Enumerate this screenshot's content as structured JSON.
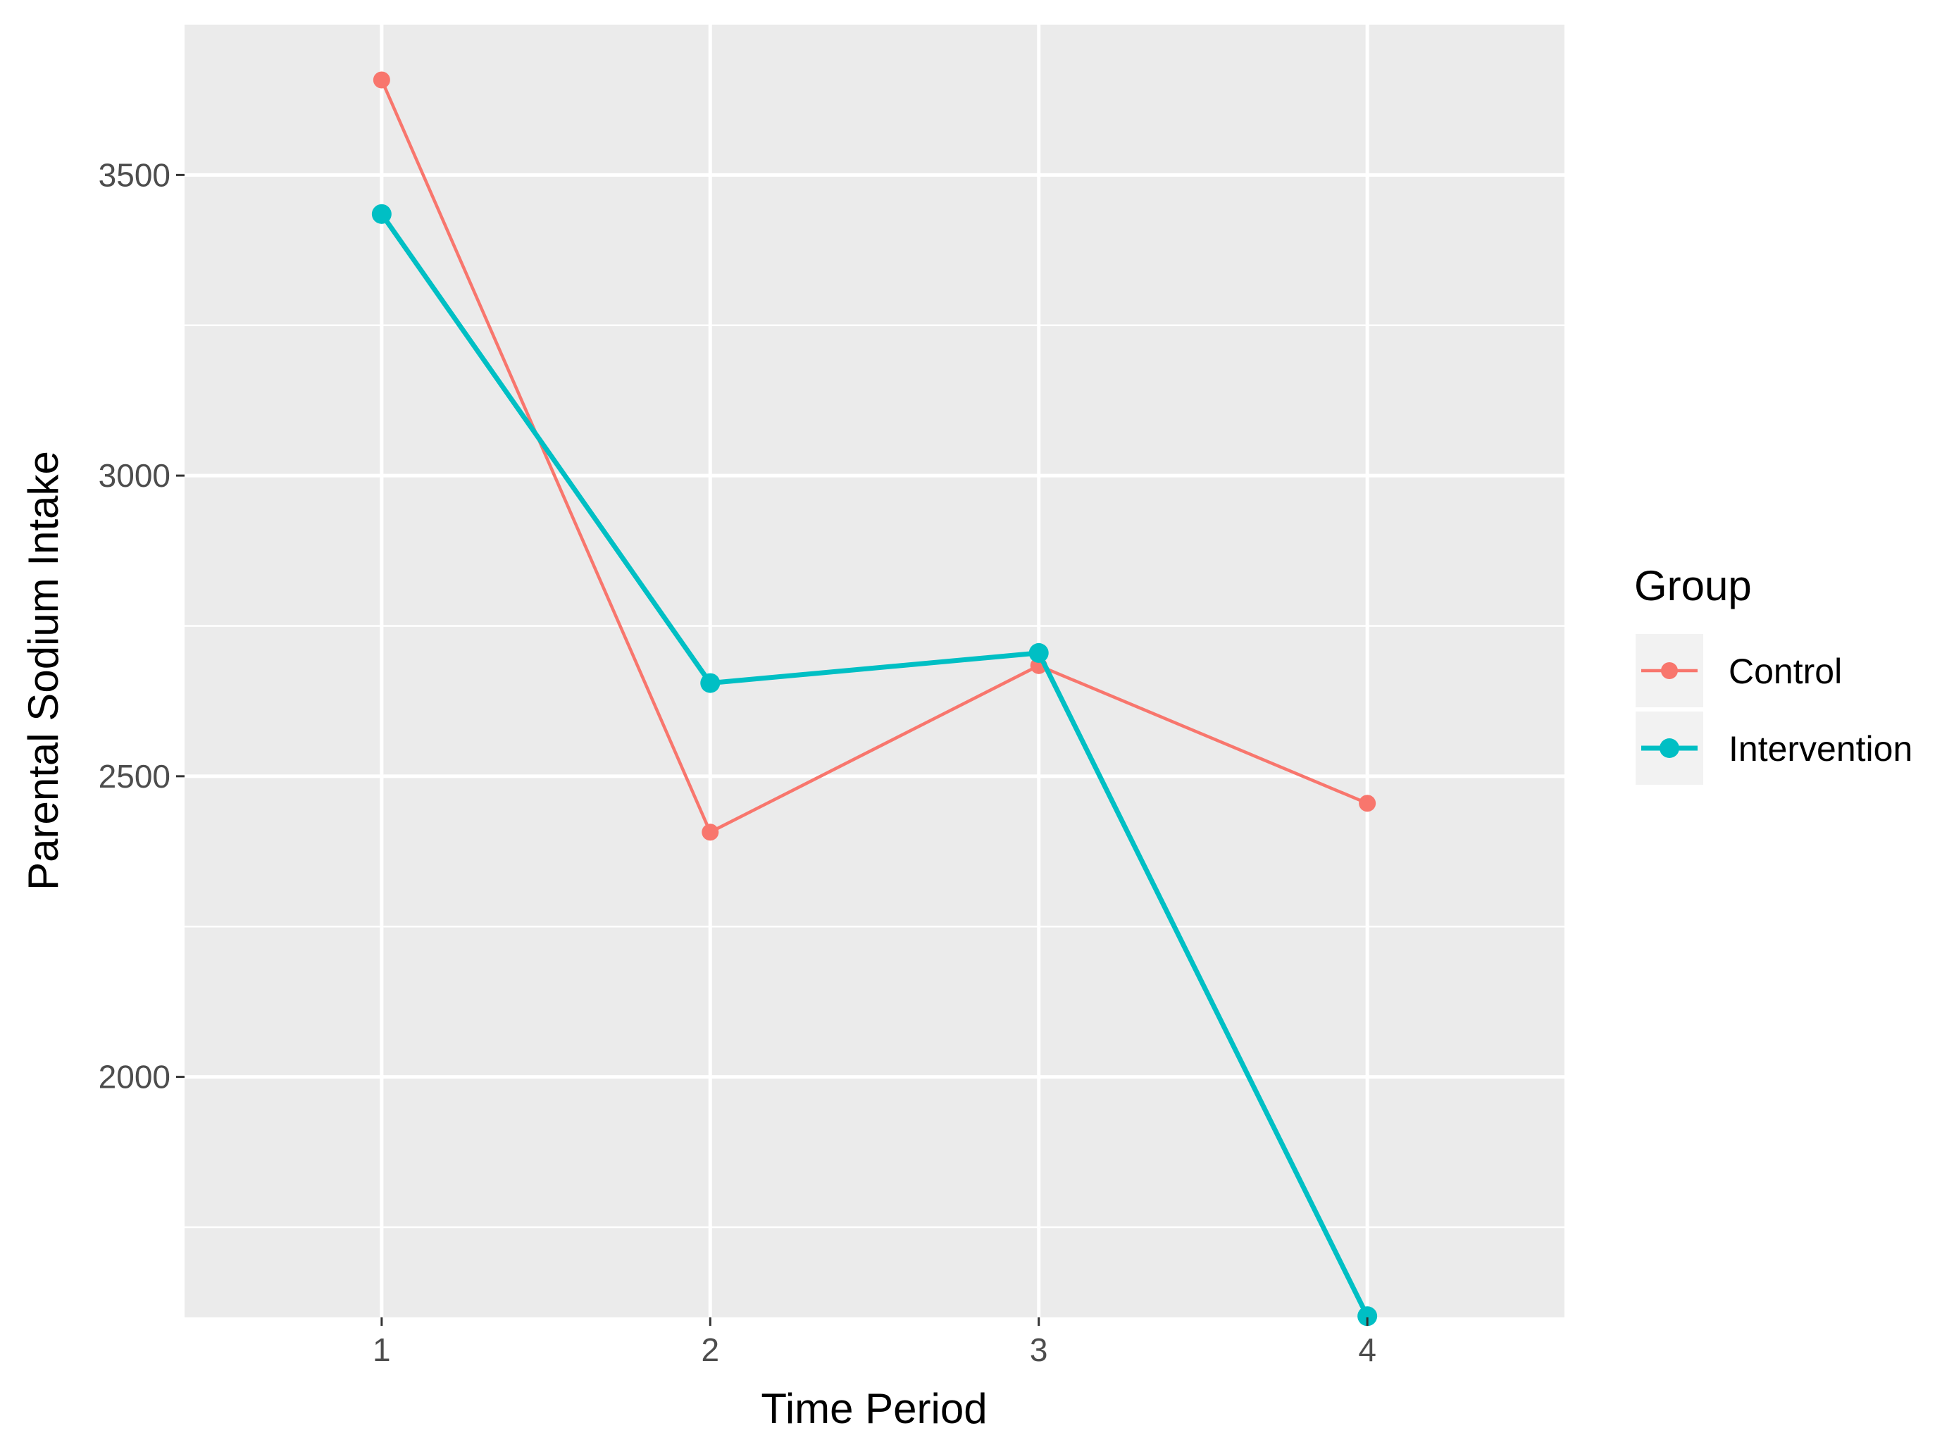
{
  "chart_data": {
    "type": "line",
    "xlabel": "Time Period",
    "ylabel": "Parental Sodium Intake",
    "categories": [
      "1",
      "2",
      "3",
      "4"
    ],
    "x": [
      1,
      2,
      3,
      4
    ],
    "xlim": [
      0.4,
      4.6
    ],
    "ylim": [
      1600,
      3750
    ],
    "y_ticks": [
      2000,
      2500,
      3000,
      3500
    ],
    "y_minor_ticks": [
      1750,
      2250,
      2750,
      3250
    ],
    "grid": true,
    "legend": {
      "title": "Group",
      "placement": "right"
    },
    "series": [
      {
        "name": "Control",
        "color": "#F8766D",
        "values": [
          3658,
          2407,
          2684,
          2455
        ]
      },
      {
        "name": "Intervention",
        "color": "#00BFC4",
        "values": [
          3435,
          2655,
          2705,
          1602
        ]
      }
    ]
  }
}
